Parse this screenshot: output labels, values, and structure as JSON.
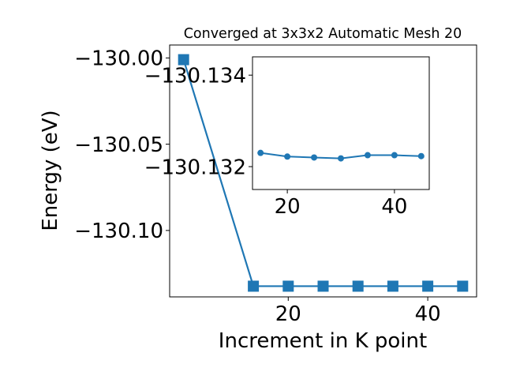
{
  "chart_data": [
    {
      "type": "line",
      "title": "Converged at 3x3x2 Automatic Mesh 20",
      "xlabel": "Increment in K point",
      "ylabel": "Energy (eV)",
      "xlim": [
        3.0,
        47.0
      ],
      "ylim": [
        -130.1385,
        -129.9925
      ],
      "xticks": [
        20,
        40
      ],
      "yticks": [
        -130.0,
        -130.05,
        -130.1
      ],
      "ytick_labels": [
        "−130.00",
        "−130.05",
        "−130.10"
      ],
      "marker": "square",
      "grid": false,
      "series": [
        {
          "color": "#1f77b4",
          "x": [
            5,
            15,
            20,
            25,
            30,
            35,
            40,
            45
          ],
          "y": [
            -130.001,
            -130.1323,
            -130.1323,
            -130.1323,
            -130.1323,
            -130.1323,
            -130.1323,
            -130.1323
          ]
        }
      ]
    },
    {
      "type": "line",
      "title": "",
      "xlabel": "",
      "ylabel": "",
      "xlim": [
        13.5,
        46.5
      ],
      "ylim": [
        -130.1315,
        -130.1344
      ],
      "xticks": [
        20,
        40
      ],
      "yticks": [
        -130.132,
        -130.134
      ],
      "ytick_labels": [
        "−130.132",
        "−130.134"
      ],
      "marker": "circle",
      "grid": false,
      "series": [
        {
          "color": "#1f77b4",
          "x": [
            15,
            20,
            25,
            30,
            35,
            40,
            45
          ],
          "y": [
            -130.1323,
            -130.13222,
            -130.1322,
            -130.13218,
            -130.13225,
            -130.13225,
            -130.13223
          ]
        }
      ]
    }
  ]
}
